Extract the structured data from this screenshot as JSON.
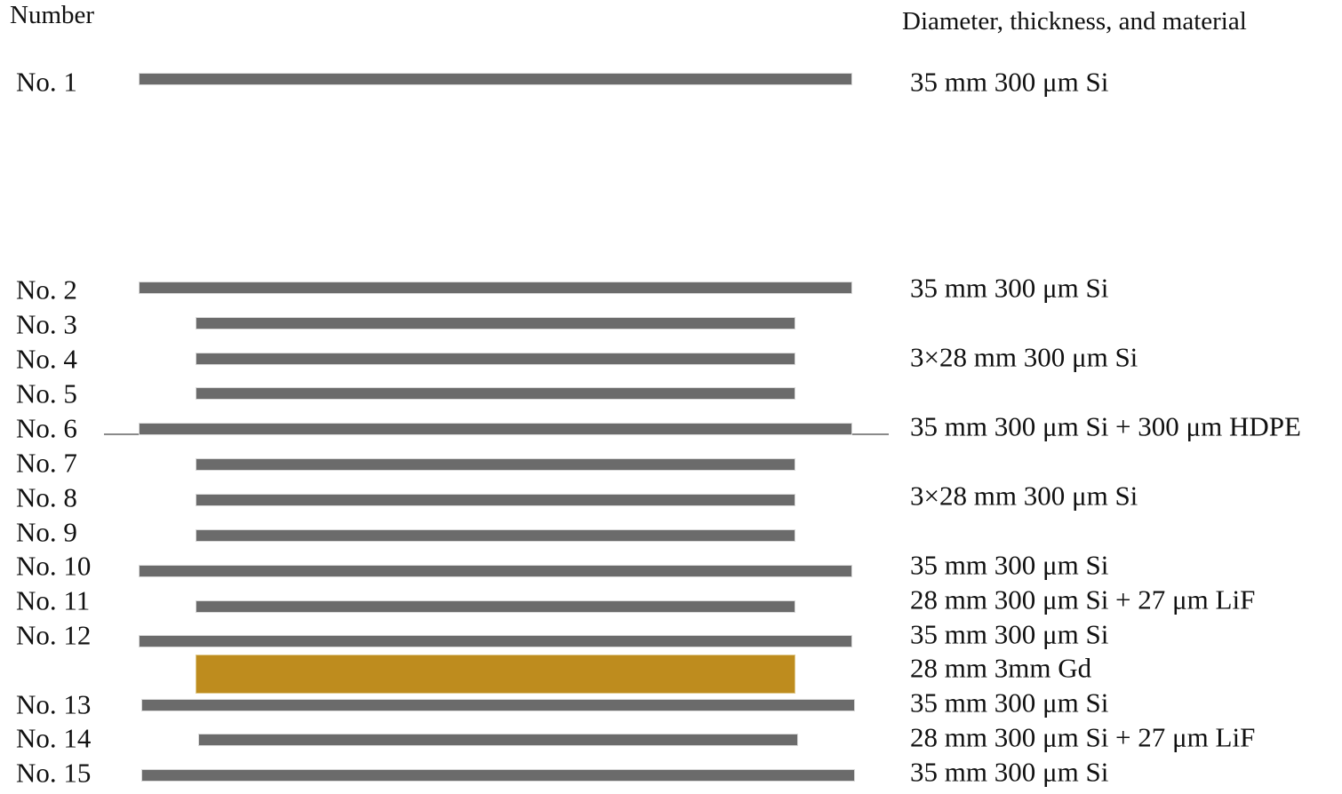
{
  "headers": {
    "left": "Number",
    "right": "Diameter, thickness, and material"
  },
  "colors": {
    "silicon": "#6b6b6b",
    "gadolinium": "#be8c1e"
  },
  "layers": [
    {
      "number": "No. 1",
      "size": "wide"
    },
    {
      "number": "No. 2",
      "size": "wide"
    },
    {
      "number": "No. 3",
      "size": "narrow"
    },
    {
      "number": "No. 4",
      "size": "narrow"
    },
    {
      "number": "No. 5",
      "size": "narrow"
    },
    {
      "number": "No. 6",
      "size": "wide"
    },
    {
      "number": "No. 7",
      "size": "narrow"
    },
    {
      "number": "No. 8",
      "size": "narrow"
    },
    {
      "number": "No. 9",
      "size": "narrow"
    },
    {
      "number": "No. 10",
      "size": "wide"
    },
    {
      "number": "No. 11",
      "size": "narrow"
    },
    {
      "number": "No. 12",
      "size": "wide"
    },
    {
      "number": "",
      "size": "converter"
    },
    {
      "number": "No. 13",
      "size": "wide"
    },
    {
      "number": "No. 14",
      "size": "narrow"
    },
    {
      "number": "No. 15",
      "size": "wide"
    }
  ],
  "materials": [
    "35 mm 300 μm Si",
    "35 mm 300 μm Si",
    "3×28 mm 300 μm Si",
    "35 mm 300 μm Si + 300 μm HDPE",
    "3×28 mm 300 μm Si",
    "35 mm 300 μm Si",
    "28 mm 300 μm Si + 27 μm LiF",
    "35 mm 300 μm Si",
    "28 mm 3mm Gd",
    "35 mm 300 μm Si",
    "28 mm 300 μm Si + 27 μm LiF",
    "35 mm 300 μm Si"
  ]
}
